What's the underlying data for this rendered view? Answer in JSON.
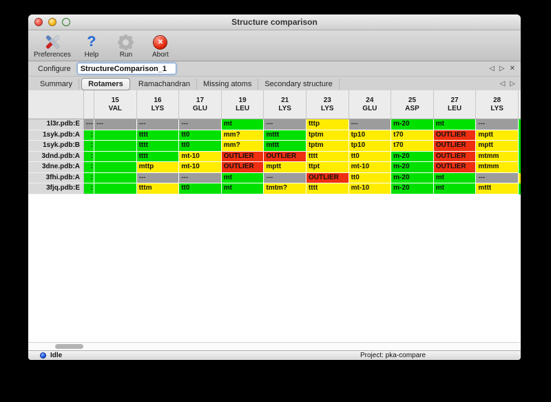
{
  "window": {
    "title": "Structure comparison"
  },
  "toolbar": {
    "items": [
      {
        "label": "Preferences",
        "icon": "tools-icon"
      },
      {
        "label": "Help",
        "icon": "question-mark-icon"
      },
      {
        "label": "Run",
        "icon": "gear-icon"
      },
      {
        "label": "Abort",
        "icon": "abort-icon"
      }
    ]
  },
  "configure": {
    "label": "Configure",
    "value": "StructureComparison_1",
    "nav_prev": "◁",
    "nav_next": "▷",
    "nav_close": "✕"
  },
  "tabs": {
    "items": [
      "Summary",
      "Rotamers",
      "Ramachandran",
      "Missing atoms",
      "Secondary structure"
    ],
    "selected": "Rotamers",
    "nav_prev": "◁",
    "nav_next": "▷"
  },
  "colors": {
    "green": "#00e100",
    "yellow": "#ffec00",
    "red": "#ee2f11",
    "gray": "#9c9c9c"
  },
  "table": {
    "columns": [
      {
        "num": "15",
        "res": "VAL"
      },
      {
        "num": "16",
        "res": "LYS"
      },
      {
        "num": "17",
        "res": "GLU"
      },
      {
        "num": "19",
        "res": "LEU"
      },
      {
        "num": "21",
        "res": "LYS"
      },
      {
        "num": "23",
        "res": "LYS"
      },
      {
        "num": "24",
        "res": "GLU"
      },
      {
        "num": "25",
        "res": "ASP"
      },
      {
        "num": "27",
        "res": "LEU"
      },
      {
        "num": "28",
        "res": "LYS"
      }
    ],
    "rows": [
      {
        "name": "1l3r.pdb:E",
        "left_clip": {
          "text": "---",
          "color": "gray"
        },
        "cells": [
          {
            "text": "---",
            "color": "gray"
          },
          {
            "text": "---",
            "color": "gray"
          },
          {
            "text": "---",
            "color": "gray"
          },
          {
            "text": "mt",
            "color": "green"
          },
          {
            "text": "---",
            "color": "gray"
          },
          {
            "text": "tttp",
            "color": "yellow"
          },
          {
            "text": "---",
            "color": "gray"
          },
          {
            "text": "m-20",
            "color": "green"
          },
          {
            "text": "mt",
            "color": "green"
          },
          {
            "text": "---",
            "color": "gray"
          }
        ],
        "right_clip": {
          "color": "green"
        }
      },
      {
        "name": "1syk.pdb:A",
        "left_clip": {
          "text": ":",
          "color": "green"
        },
        "cells": [
          {
            "text": "",
            "color": "green"
          },
          {
            "text": "tttt",
            "color": "green"
          },
          {
            "text": "tt0",
            "color": "green"
          },
          {
            "text": "mm?",
            "color": "yellow"
          },
          {
            "text": "mttt",
            "color": "green"
          },
          {
            "text": "tptm",
            "color": "yellow"
          },
          {
            "text": "tp10",
            "color": "yellow"
          },
          {
            "text": "t70",
            "color": "yellow"
          },
          {
            "text": "OUTLIER",
            "color": "red"
          },
          {
            "text": "mptt",
            "color": "yellow"
          }
        ],
        "right_clip": {
          "color": "green"
        }
      },
      {
        "name": "1syk.pdb:B",
        "left_clip": {
          "text": ":",
          "color": "green"
        },
        "cells": [
          {
            "text": "",
            "color": "green"
          },
          {
            "text": "tttt",
            "color": "green"
          },
          {
            "text": "tt0",
            "color": "green"
          },
          {
            "text": "mm?",
            "color": "yellow"
          },
          {
            "text": "mttt",
            "color": "green"
          },
          {
            "text": "tptm",
            "color": "yellow"
          },
          {
            "text": "tp10",
            "color": "yellow"
          },
          {
            "text": "t70",
            "color": "yellow"
          },
          {
            "text": "OUTLIER",
            "color": "red"
          },
          {
            "text": "mptt",
            "color": "yellow"
          }
        ],
        "right_clip": {
          "color": "green"
        }
      },
      {
        "name": "3dnd.pdb:A",
        "left_clip": {
          "text": ":",
          "color": "green"
        },
        "cells": [
          {
            "text": "",
            "color": "green"
          },
          {
            "text": "tttt",
            "color": "green"
          },
          {
            "text": "mt-10",
            "color": "yellow"
          },
          {
            "text": "OUTLIER",
            "color": "red"
          },
          {
            "text": "OUTLIER",
            "color": "red"
          },
          {
            "text": "tttt",
            "color": "yellow"
          },
          {
            "text": "tt0",
            "color": "yellow"
          },
          {
            "text": "m-20",
            "color": "green"
          },
          {
            "text": "OUTLIER",
            "color": "red"
          },
          {
            "text": "mtmm",
            "color": "yellow"
          }
        ],
        "right_clip": {
          "color": "green"
        }
      },
      {
        "name": "3dne.pdb:A",
        "left_clip": {
          "text": ":",
          "color": "green"
        },
        "cells": [
          {
            "text": "",
            "color": "green"
          },
          {
            "text": "mttp",
            "color": "yellow"
          },
          {
            "text": "mt-10",
            "color": "yellow"
          },
          {
            "text": "OUTLIER",
            "color": "red"
          },
          {
            "text": "mptt",
            "color": "yellow"
          },
          {
            "text": "ttpt",
            "color": "yellow"
          },
          {
            "text": "mt-10",
            "color": "yellow"
          },
          {
            "text": "m-20",
            "color": "green"
          },
          {
            "text": "OUTLIER",
            "color": "red"
          },
          {
            "text": "mtmm",
            "color": "yellow"
          }
        ],
        "right_clip": {
          "color": "green"
        }
      },
      {
        "name": "3fhi.pdb:A",
        "left_clip": {
          "text": ":",
          "color": "green"
        },
        "cells": [
          {
            "text": "",
            "color": "green"
          },
          {
            "text": "---",
            "color": "gray"
          },
          {
            "text": "---",
            "color": "gray"
          },
          {
            "text": "mt",
            "color": "green"
          },
          {
            "text": "---",
            "color": "gray"
          },
          {
            "text": "OUTLIER",
            "color": "red"
          },
          {
            "text": "tt0",
            "color": "yellow"
          },
          {
            "text": "m-20",
            "color": "green"
          },
          {
            "text": "mt",
            "color": "green"
          },
          {
            "text": "---",
            "color": "gray"
          }
        ],
        "right_clip": {
          "color": "yellow"
        }
      },
      {
        "name": "3fjq.pdb:E",
        "left_clip": {
          "text": ":",
          "color": "green"
        },
        "cells": [
          {
            "text": "",
            "color": "green"
          },
          {
            "text": "tttm",
            "color": "yellow"
          },
          {
            "text": "tt0",
            "color": "green"
          },
          {
            "text": "mt",
            "color": "green"
          },
          {
            "text": "tmtm?",
            "color": "yellow"
          },
          {
            "text": "tttt",
            "color": "yellow"
          },
          {
            "text": "mt-10",
            "color": "yellow"
          },
          {
            "text": "m-20",
            "color": "green"
          },
          {
            "text": "mt",
            "color": "green"
          },
          {
            "text": "mttt",
            "color": "yellow"
          }
        ],
        "right_clip": {
          "color": "green"
        }
      }
    ]
  },
  "statusbar": {
    "status": "Idle",
    "project": "Project: pka-compare"
  }
}
